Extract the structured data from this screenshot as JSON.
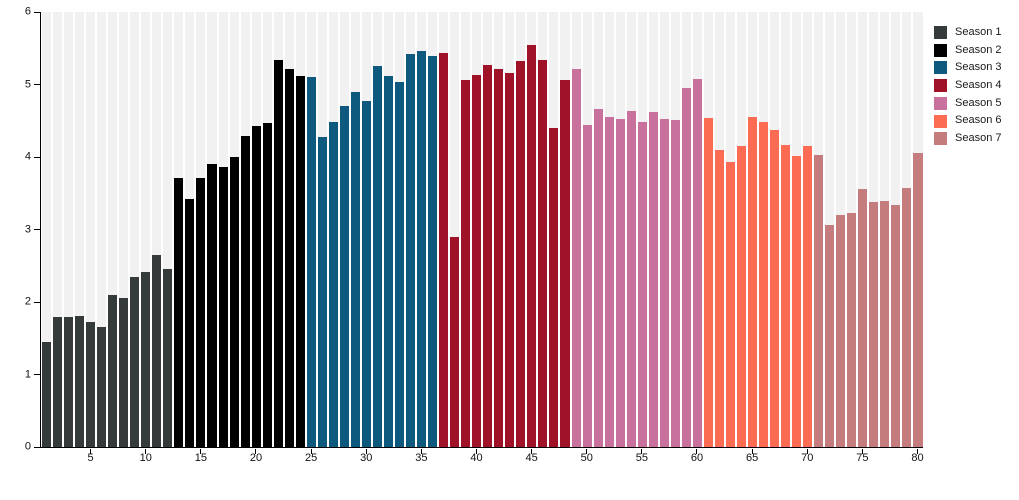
{
  "figure": {
    "background_color": "#ffffff",
    "plot_background_stripe_color": "#f1f1f1",
    "axis_color": "#000000"
  },
  "legend": {
    "position": "top-right",
    "entries": [
      {
        "label": "Season 1",
        "color": "#353b3b"
      },
      {
        "label": "Season 2",
        "color": "#010101"
      },
      {
        "label": "Season 3",
        "color": "#0e5a7e"
      },
      {
        "label": "Season 4",
        "color": "#9f1228"
      },
      {
        "label": "Season 5",
        "color": "#c8719c"
      },
      {
        "label": "Season 6",
        "color": "#fb6c52"
      },
      {
        "label": "Season 7",
        "color": "#c47d7c"
      }
    ]
  },
  "chart_data": {
    "type": "bar",
    "title": "",
    "xlabel": "",
    "ylabel": "",
    "ylim": [
      0,
      6
    ],
    "yticks": [
      0,
      1,
      2,
      3,
      4,
      5,
      6
    ],
    "xticks": [
      5,
      10,
      15,
      20,
      25,
      30,
      35,
      40,
      45,
      50,
      55,
      60,
      65,
      70,
      75,
      80
    ],
    "grid": "off",
    "legend_position": "top-right",
    "x": [
      1,
      2,
      3,
      4,
      5,
      6,
      7,
      8,
      9,
      10,
      11,
      12,
      13,
      14,
      15,
      16,
      17,
      18,
      19,
      20,
      21,
      22,
      23,
      24,
      25,
      26,
      27,
      28,
      29,
      30,
      31,
      32,
      33,
      34,
      35,
      36,
      37,
      38,
      39,
      40,
      41,
      42,
      43,
      44,
      45,
      46,
      47,
      48,
      49,
      50,
      51,
      52,
      53,
      54,
      55,
      56,
      57,
      58,
      59,
      60,
      61,
      62,
      63,
      64,
      65,
      66,
      67,
      68,
      69,
      70,
      71,
      72,
      73,
      74,
      75,
      76,
      77,
      78,
      79,
      80
    ],
    "values": [
      1.45,
      1.79,
      1.8,
      1.81,
      1.73,
      1.66,
      2.09,
      2.06,
      2.35,
      2.42,
      2.65,
      2.45,
      3.71,
      3.42,
      3.71,
      3.91,
      3.86,
      4.0,
      4.29,
      4.43,
      4.47,
      5.34,
      5.21,
      5.12,
      5.1,
      4.27,
      4.48,
      4.7,
      4.89,
      4.77,
      5.26,
      5.12,
      5.03,
      5.42,
      5.46,
      5.39,
      5.44,
      2.9,
      5.06,
      5.13,
      5.27,
      5.21,
      5.16,
      5.32,
      5.55,
      5.34,
      4.4,
      5.06,
      5.22,
      4.44,
      4.66,
      4.55,
      4.52,
      4.64,
      4.48,
      4.62,
      4.52,
      4.51,
      4.95,
      5.07,
      4.54,
      4.1,
      3.93,
      4.15,
      4.55,
      4.48,
      4.37,
      4.17,
      4.01,
      4.15,
      4.03,
      3.06,
      3.2,
      3.23,
      3.56,
      3.38,
      3.39,
      3.34,
      3.57,
      4.05
    ],
    "series": [
      {
        "name": "Season 1",
        "color": "#353b3b",
        "episode_start": 1,
        "episode_end": 12
      },
      {
        "name": "Season 2",
        "color": "#010101",
        "episode_start": 13,
        "episode_end": 24
      },
      {
        "name": "Season 3",
        "color": "#0e5a7e",
        "episode_start": 25,
        "episode_end": 36
      },
      {
        "name": "Season 4",
        "color": "#9f1228",
        "episode_start": 37,
        "episode_end": 48
      },
      {
        "name": "Season 5",
        "color": "#c8719c",
        "episode_start": 49,
        "episode_end": 60
      },
      {
        "name": "Season 6",
        "color": "#fb6c52",
        "episode_start": 61,
        "episode_end": 70
      },
      {
        "name": "Season 7",
        "color": "#c47d7c",
        "episode_start": 71,
        "episode_end": 80
      }
    ]
  }
}
